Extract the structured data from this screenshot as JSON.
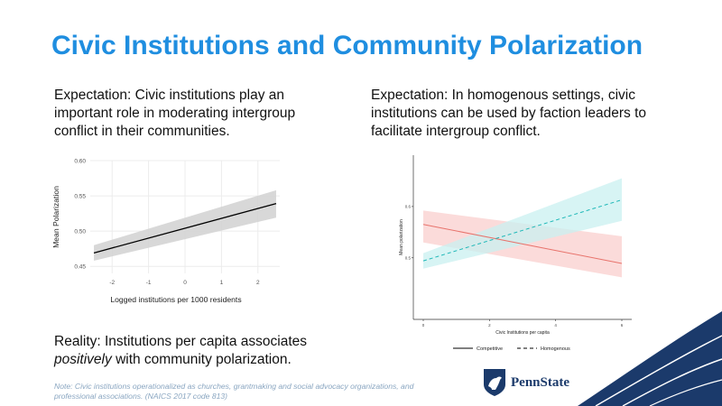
{
  "title": "Civic Institutions and Community Polarization",
  "left_block": {
    "lead": "Expectation:",
    "text": "Civic institutions play an important role in moderating intergroup conflict in their communities."
  },
  "right_block": {
    "lead": "Expectation:",
    "text": "In homogenous settings, civic institutions can be used by faction leaders to facilitate intergroup conflict."
  },
  "reality_block": {
    "lead": "Reality:",
    "text_a": "Institutions per capita associates",
    "text_em": "positively",
    "text_b": "with community polarization."
  },
  "note": "Note: Civic institutions operationalized as churches, grantmaking and social advocacy organizations, and professional associations. (NAICS 2017 code 813)",
  "logo_text": "PennState",
  "colors": {
    "title": "#1f8ee0",
    "band_gray": "#d4d4d4",
    "competitive": "#e8736c",
    "homogenous": "#1fb8b8",
    "navy": "#1b3a6b"
  },
  "chart_data": [
    {
      "type": "line",
      "title": "",
      "xlabel": "Logged institutions per 1000 residents",
      "ylabel": "Mean Polarization",
      "xticks": [
        "-2",
        "-1",
        "0",
        "1",
        "2"
      ],
      "yticks": [
        "0.45",
        "0.50",
        "0.55",
        "0.60"
      ],
      "xlim": [
        -2.6,
        2.6
      ],
      "ylim": [
        0.44,
        0.6
      ],
      "grid": true,
      "series": [
        {
          "x": [
            -2.5,
            2.5
          ],
          "y": [
            0.469,
            0.539
          ],
          "ci_lower": [
            0.458,
            0.519
          ],
          "ci_upper": [
            0.48,
            0.558
          ]
        }
      ]
    },
    {
      "type": "line",
      "title": "",
      "xlabel": "Civic Institutions per capita",
      "ylabel": "Mean polarization",
      "xticks": [
        "0",
        "2",
        "4",
        "6"
      ],
      "yticks": [
        "0.5",
        "0.6"
      ],
      "xlim": [
        -0.3,
        6.3
      ],
      "ylim": [
        0.38,
        0.7
      ],
      "grid": false,
      "legend_position": "bottom",
      "series": [
        {
          "name": "Competitive",
          "x": [
            0,
            6
          ],
          "y": [
            0.565,
            0.489
          ],
          "ci_lower": [
            0.53,
            0.462
          ],
          "ci_upper": [
            0.592,
            0.542
          ]
        },
        {
          "name": "Homogenous",
          "x": [
            0,
            6
          ],
          "y": [
            0.494,
            0.613
          ],
          "ci_lower": [
            0.479,
            0.572
          ],
          "ci_upper": [
            0.509,
            0.655
          ]
        }
      ]
    }
  ]
}
